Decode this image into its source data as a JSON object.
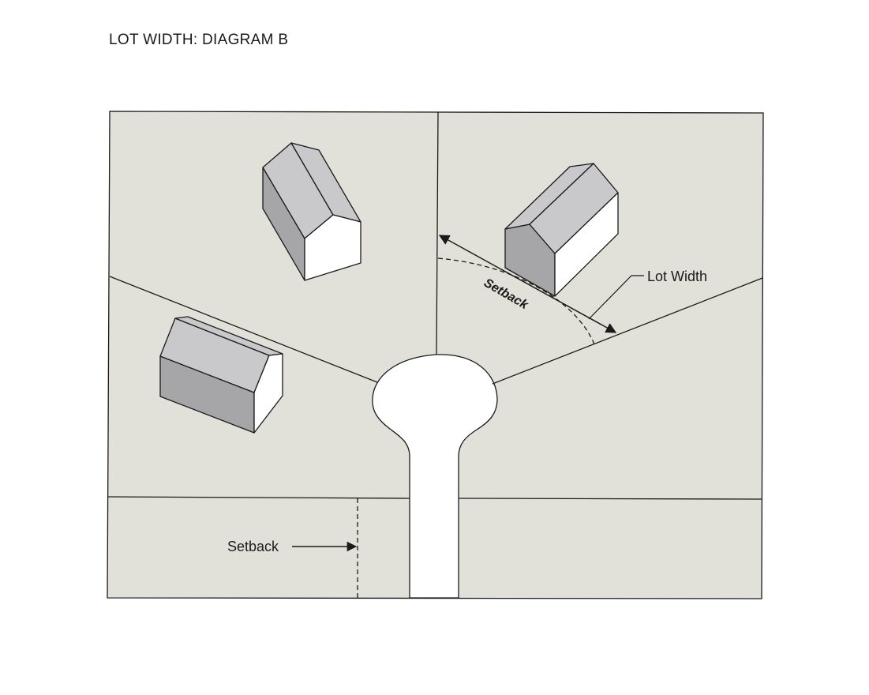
{
  "title": "LOT WIDTH: DIAGRAM B",
  "labels": {
    "lot_width": "Lot Width",
    "setback_curved": "Setback",
    "setback_lower": "Setback"
  },
  "colors": {
    "lot_fill": "#e1e1da",
    "street_fill": "#ffffff",
    "roof_light": "#c9c9cb",
    "wall_dark": "#a6a6a8",
    "wall_white": "#ffffff",
    "line": "#1a1a1a"
  }
}
